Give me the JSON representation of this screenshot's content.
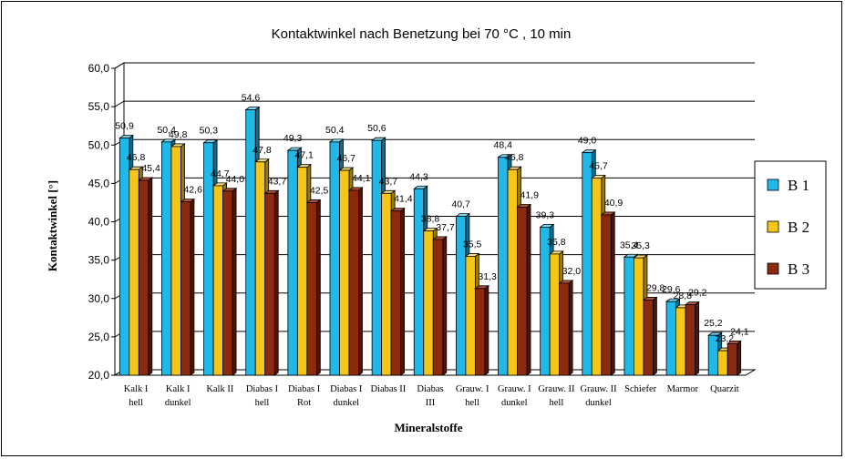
{
  "chart_data": {
    "type": "bar",
    "title": "Kontaktwinkel nach Benetzung bei 70 °C , 10 min",
    "xlabel": "Mineralstoffe",
    "ylabel": "Kontaktwinkel [°]",
    "ylim": [
      20,
      60
    ],
    "yticks": [
      "20,0",
      "25,0",
      "30,0",
      "35,0",
      "40,0",
      "45,0",
      "50,0",
      "55,0",
      "60,0"
    ],
    "categories": [
      [
        "Kalk I",
        "hell"
      ],
      [
        "Kalk I",
        "dunkel"
      ],
      [
        "Kalk II"
      ],
      [
        "Diabas I",
        "hell"
      ],
      [
        "Diabas I",
        "Rot"
      ],
      [
        "Diabas I",
        "dunkel"
      ],
      [
        "Diabas II"
      ],
      [
        "Diabas",
        "III"
      ],
      [
        "Grauw. I",
        "hell"
      ],
      [
        "Grauw. I",
        "dunkel"
      ],
      [
        "Grauw. II",
        "hell"
      ],
      [
        "Grauw. II",
        "dunkel"
      ],
      [
        "Schiefer"
      ],
      [
        "Marmor"
      ],
      [
        "Quarzit"
      ]
    ],
    "series": [
      {
        "name": "B 1",
        "color": "#1fb8e8",
        "dark": "#0a6f8f",
        "top": "#7fdaf5",
        "values": [
          50.9,
          50.4,
          50.3,
          54.6,
          49.3,
          50.4,
          50.6,
          44.3,
          40.7,
          48.4,
          39.3,
          49.0,
          35.4,
          29.6,
          25.2
        ],
        "labels": [
          "50,9",
          "50,4",
          "50,3",
          "54,6",
          "49,3",
          "50,4",
          "50,6",
          "44,3",
          "40,7",
          "48,4",
          "39,3",
          "49,0",
          "35,4",
          "29,6",
          "25,2"
        ]
      },
      {
        "name": "B 2",
        "color": "#f5c518",
        "dark": "#9c7a05",
        "top": "#fbe27a",
        "values": [
          46.8,
          49.8,
          44.7,
          47.8,
          47.1,
          46.7,
          43.7,
          38.8,
          35.5,
          46.8,
          35.8,
          45.7,
          35.3,
          28.8,
          23.2
        ],
        "labels": [
          "46,8",
          "49,8",
          "44,7",
          "47,8",
          "47,1",
          "46,7",
          "43,7",
          "38,8",
          "35,5",
          "46,8",
          "35,8",
          "45,7",
          "35,3",
          "28,8",
          "23,2"
        ]
      },
      {
        "name": "B 3",
        "color": "#8b2a0e",
        "dark": "#4e1404",
        "top": "#b4553a",
        "values": [
          45.4,
          42.6,
          44.0,
          43.7,
          42.5,
          44.1,
          41.4,
          37.7,
          31.3,
          41.9,
          32.0,
          40.9,
          29.8,
          29.2,
          24.1
        ],
        "labels": [
          "45,4",
          "42,6",
          "44,0",
          "43,7",
          "42,5",
          "44,1",
          "41,4",
          "37,7",
          "31,3",
          "41,9",
          "32,0",
          "40,9",
          "29,8",
          "29,2",
          "24,1"
        ]
      }
    ],
    "legend": "right",
    "grid": true
  }
}
